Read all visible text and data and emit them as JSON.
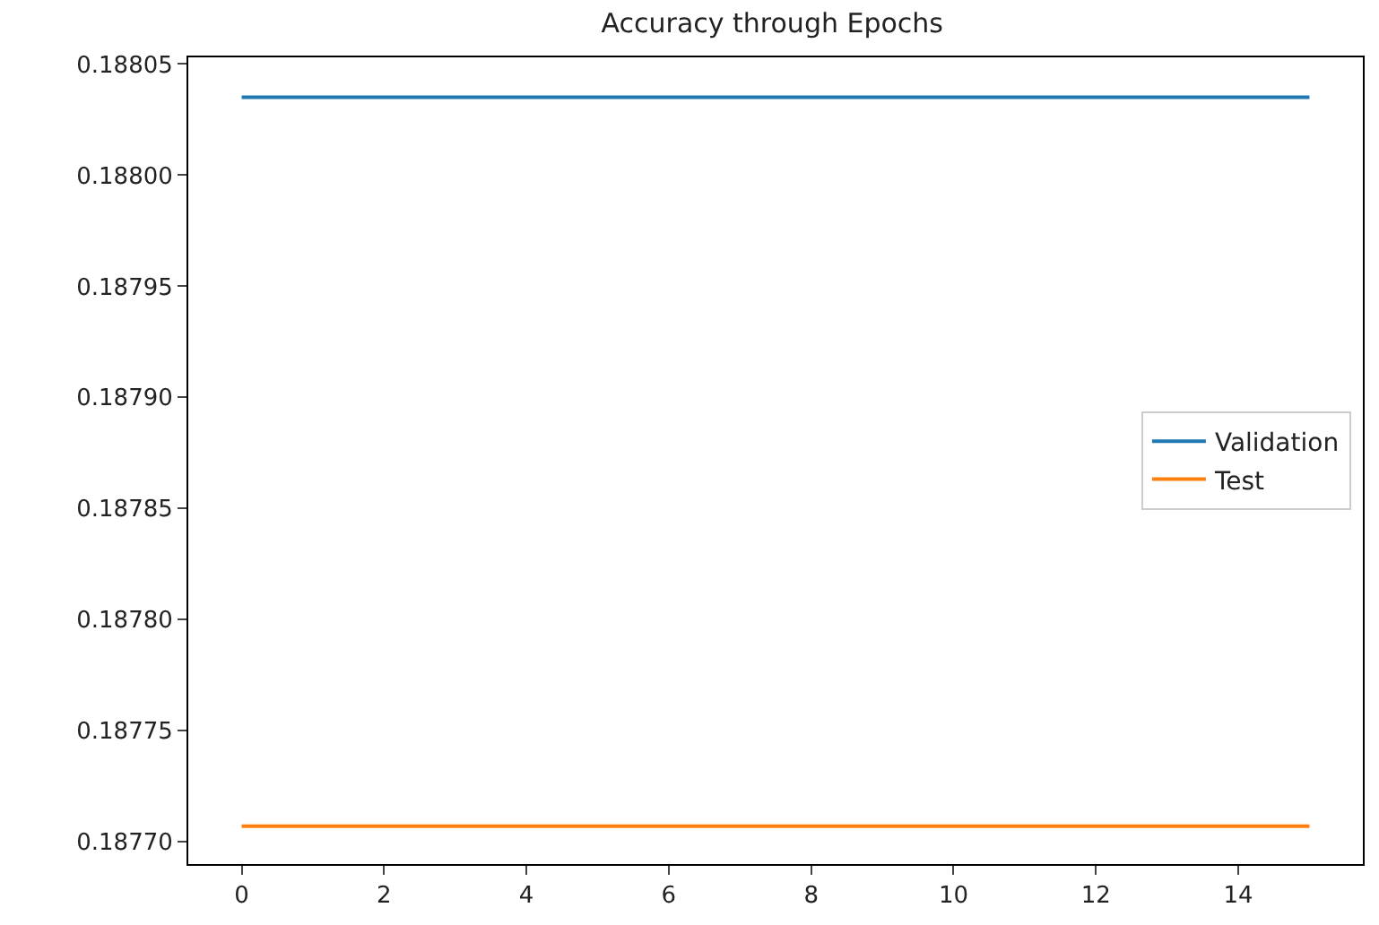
{
  "chart_data": {
    "type": "line",
    "title": "Accuracy through Epochs",
    "x": [
      0,
      15
    ],
    "series": [
      {
        "name": "Validation",
        "color": "#1f77b4",
        "values": [
          0.188035,
          0.188035
        ]
      },
      {
        "name": "Test",
        "color": "#ff7f0e",
        "values": [
          0.187707,
          0.187707
        ]
      }
    ],
    "xlim": [
      -0.75,
      15.75
    ],
    "xticks": [
      0,
      2,
      4,
      6,
      8,
      10,
      12,
      14
    ],
    "ylim": [
      0.18769,
      0.188053
    ],
    "yticks": [
      {
        "value": 0.1877,
        "label": "0.18770"
      },
      0.18775,
      {
        "value": 0.1878,
        "label": "0.18780"
      },
      0.18785,
      {
        "value": 0.1879,
        "label": "0.18790"
      },
      0.18795,
      {
        "value": 0.188,
        "label": "0.18800"
      },
      0.18805
    ],
    "legend": "right",
    "marker": "none",
    "line_style": "solid"
  }
}
